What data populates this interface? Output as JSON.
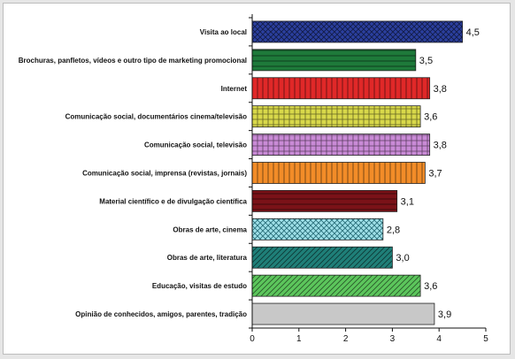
{
  "chart_data": {
    "type": "bar",
    "orientation": "horizontal",
    "categories": [
      "Visita ao local",
      "Brochuras, panfletos, vídeos e outro tipo de marketing promocional",
      "Internet",
      "Comunicação social, documentários cinema/televisão",
      "Comunicação social, televisão",
      "Comunicação social, imprensa (revistas, jornais)",
      "Material científico e de divulgação científica",
      "Obras de arte, cinema",
      "Obras de arte, literatura",
      "Educação, visitas de estudo",
      "Opinião de conhecidos, amigos, parentes, tradição"
    ],
    "values": [
      4.5,
      3.5,
      3.8,
      3.6,
      3.8,
      3.7,
      3.1,
      2.8,
      3.0,
      3.6,
      3.9
    ],
    "value_labels": [
      "4,5",
      "3,5",
      "3,8",
      "3,6",
      "3,8",
      "3,7",
      "3,1",
      "2,8",
      "3,0",
      "3,6",
      "3,9"
    ],
    "colors": [
      "#2b3f9e",
      "#1e7a3a",
      "#e02828",
      "#d8d84a",
      "#c98ad6",
      "#f28c28",
      "#7a1218",
      "#9fe0e8",
      "#1f7f78",
      "#5cc65c",
      "#c8c8c8"
    ],
    "patterns": [
      "crosshatch",
      "hlines",
      "vlines",
      "grid",
      "grid",
      "vlines",
      "hlines",
      "crosshatch",
      "diagonal",
      "diagonal",
      "none"
    ],
    "xlim": [
      0,
      5
    ],
    "xticks": [
      "0",
      "1",
      "2",
      "3",
      "4",
      "5"
    ],
    "title": "",
    "xlabel": "",
    "ylabel": "",
    "grid": false,
    "legend": "none"
  }
}
